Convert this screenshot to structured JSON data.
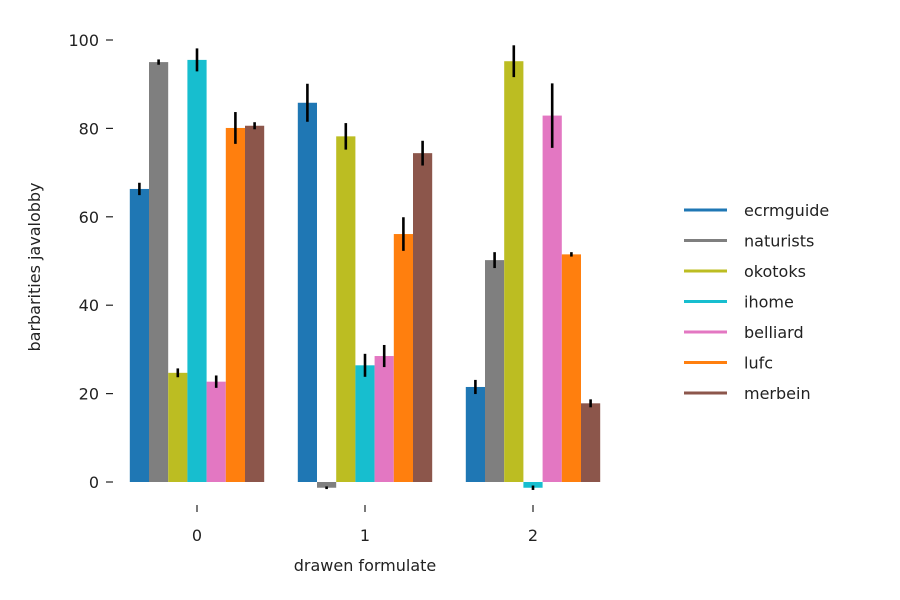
{
  "chart_data": {
    "type": "bar",
    "xlabel": "drawen formulate",
    "ylabel": "barbarities javalobby",
    "categories": [
      "0",
      "1",
      "2"
    ],
    "ylim": [
      -3,
      100
    ],
    "yticks": [
      0,
      20,
      40,
      60,
      80,
      100
    ],
    "grid": false,
    "legend_position": "right",
    "series": [
      {
        "name": "ecrmguide",
        "color": "#1f77b4",
        "values": [
          66.3,
          85.8,
          21.5
        ],
        "errors": [
          1.4,
          4.3,
          1.6
        ]
      },
      {
        "name": "naturists",
        "color": "#7f7f7f",
        "values": [
          95.0,
          -1.3,
          50.2
        ],
        "errors": [
          0.6,
          0.3,
          1.8
        ]
      },
      {
        "name": "okotoks",
        "color": "#bcbd22",
        "values": [
          24.7,
          78.2,
          95.2
        ],
        "errors": [
          1.0,
          3.0,
          3.6
        ]
      },
      {
        "name": "ihome",
        "color": "#17becf",
        "values": [
          95.5,
          26.4,
          -1.3
        ],
        "errors": [
          2.6,
          2.6,
          0.5
        ]
      },
      {
        "name": "belliard",
        "color": "#e377c2",
        "values": [
          22.7,
          28.5,
          82.9
        ],
        "errors": [
          1.4,
          2.5,
          7.3
        ]
      },
      {
        "name": "lufc",
        "color": "#ff7f0e",
        "values": [
          80.1,
          56.1,
          51.5
        ],
        "errors": [
          3.6,
          3.8,
          0.5
        ]
      },
      {
        "name": "merbein",
        "color": "#8c564b",
        "values": [
          80.6,
          74.4,
          17.8
        ],
        "errors": [
          0.8,
          2.8,
          0.9
        ]
      }
    ]
  }
}
